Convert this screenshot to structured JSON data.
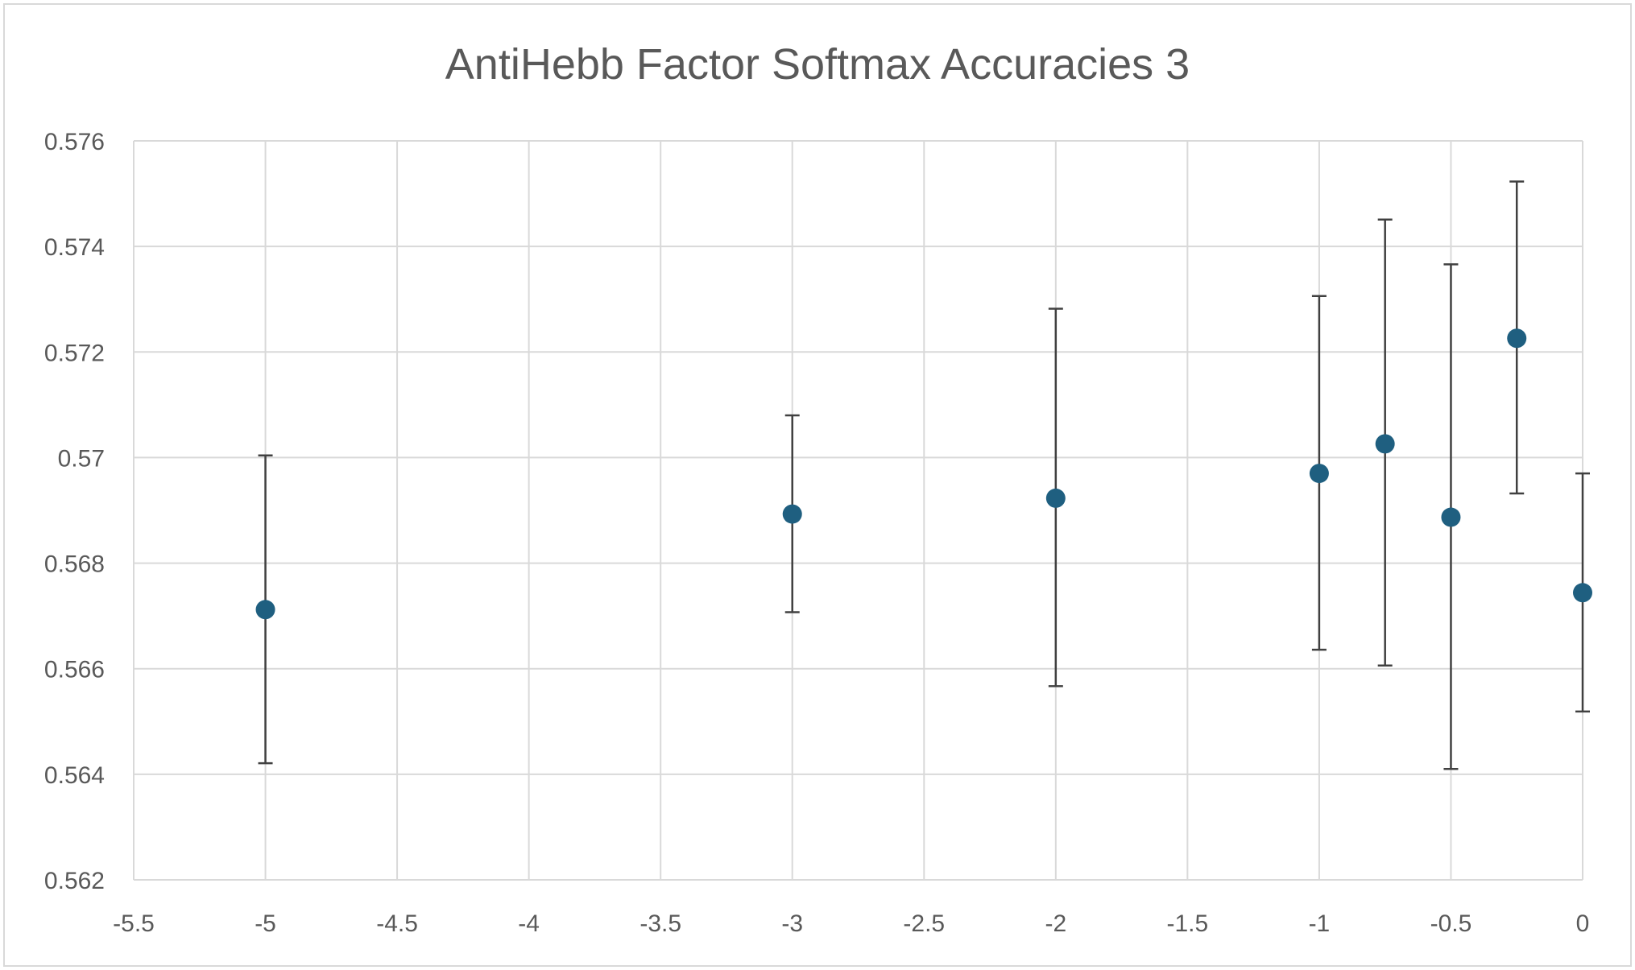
{
  "chart_data": {
    "type": "scatter",
    "title": "AntiHebb Factor Softmax Accuracies 3",
    "xlabel": "",
    "ylabel": "",
    "xlim": [
      -5.5,
      0
    ],
    "ylim": [
      0.562,
      0.576
    ],
    "x_ticks": [
      -5.5,
      -5,
      -4.5,
      -4,
      -3.5,
      -3,
      -2.5,
      -2,
      -1.5,
      -1,
      -0.5,
      0
    ],
    "x_tick_labels": [
      "-5.5",
      "-5",
      "-4.5",
      "-4",
      "-3.5",
      "-3",
      "-2.5",
      "-2",
      "-1.5",
      "-1",
      "-0.5",
      "0"
    ],
    "y_ticks": [
      0.562,
      0.564,
      0.566,
      0.568,
      0.57,
      0.572,
      0.574,
      0.576
    ],
    "y_tick_labels": [
      "0.562",
      "0.564",
      "0.566",
      "0.568",
      "0.57",
      "0.572",
      "0.574",
      "0.576"
    ],
    "grid": true,
    "legend": "none",
    "marker_color": "#1f5f80",
    "errorbar_color": "#404040",
    "points": [
      {
        "x": -5,
        "y": 0.56712,
        "err_low": 0.56421,
        "err_high": 0.57004
      },
      {
        "x": -3,
        "y": 0.56893,
        "err_low": 0.56707,
        "err_high": 0.5708
      },
      {
        "x": -2,
        "y": 0.56923,
        "err_low": 0.56567,
        "err_high": 0.57282
      },
      {
        "x": -1,
        "y": 0.5697,
        "err_low": 0.56636,
        "err_high": 0.57306
      },
      {
        "x": -0.75,
        "y": 0.57026,
        "err_low": 0.56606,
        "err_high": 0.57451
      },
      {
        "x": -0.5,
        "y": 0.56887,
        "err_low": 0.5641,
        "err_high": 0.57366
      },
      {
        "x": -0.25,
        "y": 0.57226,
        "err_low": 0.56932,
        "err_high": 0.57523
      },
      {
        "x": 0,
        "y": 0.56744,
        "err_low": 0.56519,
        "err_high": 0.5697
      }
    ]
  }
}
